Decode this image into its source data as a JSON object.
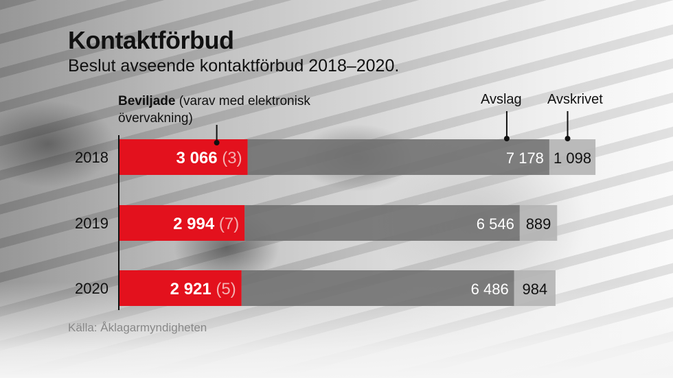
{
  "title": "Kontaktförbud",
  "subtitle": "Beslut avseende kontaktförbud 2018–2020.",
  "legend": {
    "beviljade_bold": "Beviljade",
    "beviljade_rest": " (varav med elektronisk övervakning)",
    "avslag": "Avslag",
    "avskrivet": "Avskrivet"
  },
  "source": "Källa: Åklagarmyndigheten",
  "colors": {
    "beviljade": "#e3111d",
    "avslag": "#6e6e6e",
    "avskrivet": "#b4b4b4",
    "text_light": "#ffffff",
    "text_dark": "#111111"
  },
  "chart_data": {
    "type": "bar",
    "orientation": "horizontal",
    "stacked": true,
    "categories": [
      "2018",
      "2019",
      "2020"
    ],
    "series": [
      {
        "name": "Beviljade",
        "values": [
          3066,
          2994,
          2921
        ],
        "labels": [
          "3 066",
          "2 994",
          "2 921"
        ],
        "sub_values": [
          3,
          7,
          5
        ],
        "sub_labels": [
          "(3)",
          "(7)",
          "(5)"
        ]
      },
      {
        "name": "Avslag",
        "values": [
          7178,
          6546,
          6486
        ],
        "labels": [
          "7 178",
          "6 546",
          "6 486"
        ]
      },
      {
        "name": "Avskrivet",
        "values": [
          1098,
          889,
          984
        ],
        "labels": [
          "1 098",
          "889",
          "984"
        ]
      }
    ]
  }
}
